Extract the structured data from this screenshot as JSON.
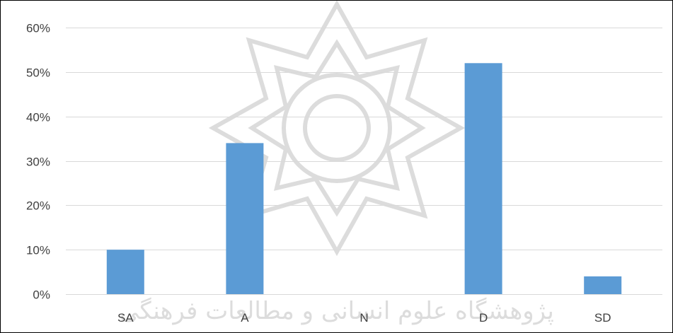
{
  "chart_data": {
    "type": "bar",
    "categories": [
      "SA",
      "A",
      "N",
      "D",
      "SD"
    ],
    "values": [
      10,
      34,
      0,
      52,
      4
    ],
    "value_unit": "%",
    "ylim": [
      0,
      60
    ],
    "yticks": [
      0,
      10,
      20,
      30,
      40,
      50,
      60
    ],
    "ytick_labels": [
      "0%",
      "10%",
      "20%",
      "30%",
      "40%",
      "50%",
      "60%"
    ],
    "title": "",
    "xlabel": "",
    "ylabel": "",
    "grid": true,
    "legend": "none"
  },
  "watermark": {
    "text": "پژوهشگاه علوم انسانی و مطالعات فرهنگی"
  },
  "colors": {
    "bar": "#5b9bd5",
    "grid": "#d9d9d9",
    "tick_text": "#404040",
    "watermark": "#d8d8d8",
    "frame": "#000000"
  }
}
